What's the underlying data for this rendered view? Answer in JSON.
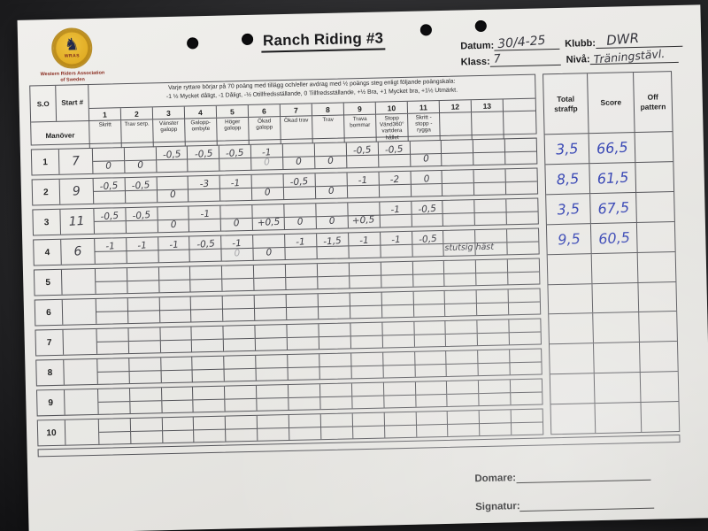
{
  "colors": {
    "ink_blue": "#3a49b5",
    "pencil": "#3f3f46",
    "paper": "#e9e8e5",
    "logo_gold": "#e0ab22",
    "logo_text_red": "#8b2e22",
    "background": "#2b2b2d"
  },
  "header": {
    "title": "Ranch Riding #3",
    "logo": {
      "abbr": "WRAS",
      "org_line1": "Western Riders Association",
      "org_line2": "of Sweden",
      "horse_icon": "horse-rider-silhouette"
    },
    "fields": {
      "datum_label": "Datum:",
      "datum_value": "30/4-25",
      "klubb_label": "Klubb:",
      "klubb_value": "DWR",
      "klass_label": "Klass:",
      "klass_value": "7",
      "niva_label": "Nivå:",
      "niva_value": "Träningstävl."
    }
  },
  "table": {
    "so_header": "S.O",
    "start_header": "Start #",
    "manover_header": "Manöver",
    "scale_line1": "Varje ryttare börjar på 70 poäng med tillägg och/eller avdrag med ½ poängs steg enligt följande poängskala:",
    "scale_line2": "-1 ½ Mycket dåligt, -1 Dåligt, -½ Otillfredsställande, 0 Tillfredsställande, +½ Bra, +1 Mycket bra, +1½ Utmärkt.",
    "col_numbers": [
      "1",
      "2",
      "3",
      "4",
      "5",
      "6",
      "7",
      "8",
      "9",
      "10",
      "11",
      "12",
      "13",
      ""
    ],
    "maneuvers": [
      "Skritt",
      "Trav serp.",
      "Vänster galopp",
      "Galopp-ombyte",
      "Höger galopp",
      "Ökad galopp",
      "Ökad trav",
      "Trav",
      "Trava bommar",
      "Stopp Vänd360° vartdera hållet",
      "Skritt - stopp - rygga",
      "",
      "",
      ""
    ],
    "right_headers": [
      "Total straffp",
      "Score",
      "Off pattern"
    ],
    "rows": [
      {
        "so": "1",
        "start": "7",
        "cells": [
          [
            "",
            "0"
          ],
          [
            "",
            "0"
          ],
          [
            "-0,5",
            ""
          ],
          [
            "-0,5",
            ""
          ],
          [
            "-0,5",
            ""
          ],
          [
            "-1",
            "0",
            "faint"
          ],
          [
            "",
            "0"
          ],
          [
            "",
            "0"
          ],
          [
            "-0,5",
            ""
          ],
          [
            "-0,5",
            ""
          ],
          [
            "",
            "0"
          ],
          null,
          null,
          null
        ],
        "total": "3,5",
        "score": "66,5",
        "off": ""
      },
      {
        "so": "2",
        "start": "9",
        "cells": [
          [
            "-0,5",
            ""
          ],
          [
            "-0,5",
            ""
          ],
          [
            "",
            "0"
          ],
          [
            "-3",
            ""
          ],
          [
            "-1",
            ""
          ],
          [
            "",
            "0"
          ],
          [
            "-0,5",
            ""
          ],
          [
            "",
            "0"
          ],
          [
            "-1",
            ""
          ],
          [
            "-2",
            ""
          ],
          [
            "0",
            ""
          ],
          null,
          null,
          null
        ],
        "total": "8,5",
        "score": "61,5",
        "off": ""
      },
      {
        "so": "3",
        "start": "11",
        "cells": [
          [
            "-0,5",
            ""
          ],
          [
            "-0,5",
            ""
          ],
          [
            "",
            "0"
          ],
          [
            "-1",
            ""
          ],
          [
            "",
            "0"
          ],
          [
            "",
            "+0,5"
          ],
          [
            "",
            "0"
          ],
          [
            "",
            "0"
          ],
          [
            "",
            "+0,5"
          ],
          [
            "-1",
            ""
          ],
          [
            "-0,5",
            ""
          ],
          null,
          null,
          null
        ],
        "total": "3,5",
        "score": "67,5",
        "off": ""
      },
      {
        "so": "4",
        "start": "6",
        "cells": [
          [
            "-1",
            ""
          ],
          [
            "-1",
            ""
          ],
          [
            "-1",
            ""
          ],
          [
            "-0,5",
            ""
          ],
          [
            "-1",
            "0",
            "faint"
          ],
          [
            "",
            "0"
          ],
          [
            "-1",
            ""
          ],
          [
            "-1,5",
            ""
          ],
          [
            "-1",
            ""
          ],
          [
            "-1",
            ""
          ],
          [
            "-0,5",
            ""
          ],
          null,
          null,
          null
        ],
        "note": "stutsig häst",
        "total": "9,5",
        "score": "60,5",
        "off": ""
      },
      {
        "so": "5",
        "start": "",
        "cells": [],
        "total": "",
        "score": "",
        "off": ""
      },
      {
        "so": "6",
        "start": "",
        "cells": [],
        "total": "",
        "score": "",
        "off": ""
      },
      {
        "so": "7",
        "start": "",
        "cells": [],
        "total": "",
        "score": "",
        "off": ""
      },
      {
        "so": "8",
        "start": "",
        "cells": [],
        "total": "",
        "score": "",
        "off": ""
      },
      {
        "so": "9",
        "start": "",
        "cells": [],
        "total": "",
        "score": "",
        "off": ""
      },
      {
        "so": "10",
        "start": "",
        "cells": [],
        "total": "",
        "score": "",
        "off": ""
      }
    ]
  },
  "footer": {
    "domare_label": "Domare:",
    "signatur_label": "Signatur:"
  }
}
